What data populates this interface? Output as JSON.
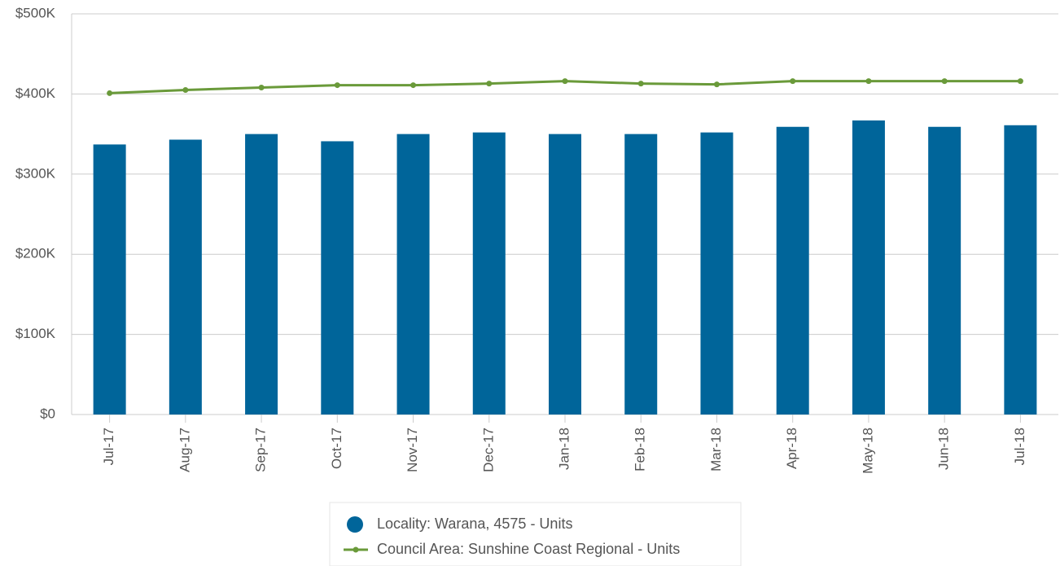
{
  "chart_data": {
    "type": "bar",
    "categories": [
      "Jul-17",
      "Aug-17",
      "Sep-17",
      "Oct-17",
      "Nov-17",
      "Dec-17",
      "Jan-18",
      "Feb-18",
      "Mar-18",
      "Apr-18",
      "May-18",
      "Jun-18",
      "Jul-18"
    ],
    "series": [
      {
        "name": "Locality: Warana, 4575 - Units",
        "type": "bar",
        "color": "#00659a",
        "values": [
          337000,
          343000,
          350000,
          341000,
          350000,
          352000,
          350000,
          350000,
          352000,
          359000,
          367000,
          359000,
          361000
        ]
      },
      {
        "name": "Council Area: Sunshine Coast Regional - Units",
        "type": "line",
        "color": "#6a9a3a",
        "values": [
          401000,
          405000,
          408000,
          411000,
          411000,
          413000,
          416000,
          413000,
          412000,
          416000,
          416000,
          416000,
          416000
        ]
      }
    ],
    "ylim": [
      0,
      500000
    ],
    "yticks": [
      {
        "value": 0,
        "label": "$0"
      },
      {
        "value": 100000,
        "label": "$100K"
      },
      {
        "value": 200000,
        "label": "$200K"
      },
      {
        "value": 300000,
        "label": "$300K"
      },
      {
        "value": 400000,
        "label": "$400K"
      },
      {
        "value": 500000,
        "label": "$500K"
      }
    ],
    "grid": true,
    "legend": "bottom"
  }
}
